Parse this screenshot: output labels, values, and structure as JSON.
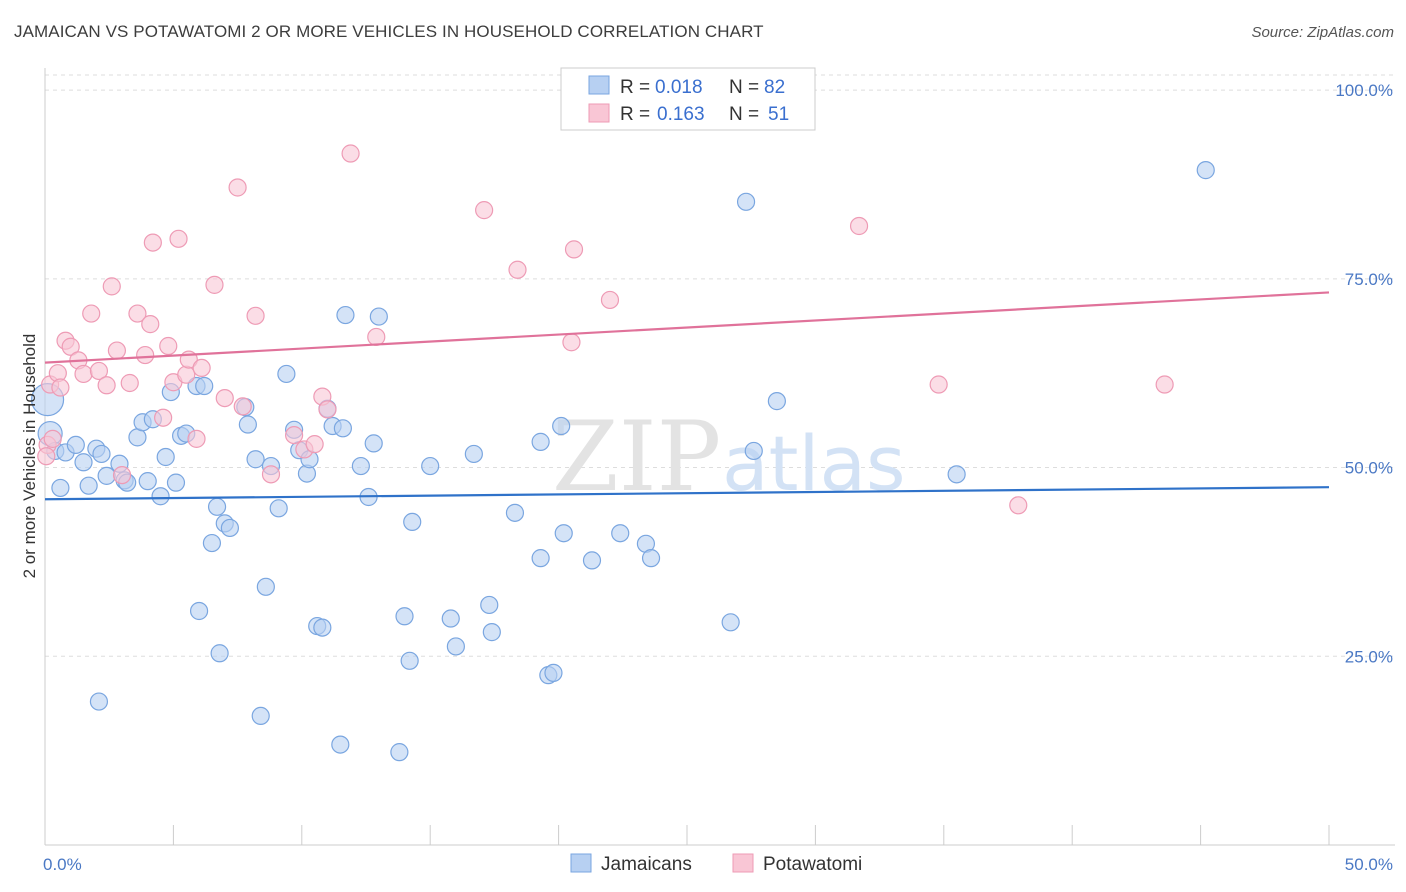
{
  "title": "JAMAICAN VS POTAWATOMI 2 OR MORE VEHICLES IN HOUSEHOLD CORRELATION CHART",
  "source": "Source: ZipAtlas.com",
  "watermark": {
    "zip": "ZIP",
    "atlas": "atlas"
  },
  "colors": {
    "jamaican_fill": "#b7d0f2",
    "jamaican_stroke": "#7aa6e0",
    "jamaican_line": "#2f72c9",
    "potawatomi_fill": "#f9c6d5",
    "potawatomi_stroke": "#ee9bb5",
    "potawatomi_line": "#e0729a",
    "axis_text": "#4a78c4",
    "grid": "#dddddd"
  },
  "legend": {
    "rows": [
      {
        "r_label": "R = ",
        "r_value": "0.018",
        "n_label": "N = ",
        "n_value": "82"
      },
      {
        "r_label": "R = ",
        "r_value": "0.163",
        "n_label": "N = ",
        "n_value": "51"
      }
    ]
  },
  "chart_data": {
    "type": "scatter",
    "title": "JAMAICAN VS POTAWATOMI 2 OR MORE VEHICLES IN HOUSEHOLD CORRELATION CHART",
    "xlabel": "",
    "ylabel": "2 or more Vehicles in Household",
    "xlim": [
      0,
      50
    ],
    "ylim": [
      0,
      102
    ],
    "x_ticks": [
      "0.0%",
      "50.0%"
    ],
    "y_ticks": [
      {
        "value": 25,
        "label": "25.0%"
      },
      {
        "value": 50,
        "label": "50.0%"
      },
      {
        "value": 75,
        "label": "75.0%"
      },
      {
        "value": 100,
        "label": "100.0%"
      }
    ],
    "grid": "horizontal-dashed",
    "legend_position": "bottom",
    "series": [
      {
        "name": "Jamaicans",
        "trend": {
          "x": [
            0,
            50
          ],
          "y": [
            45.8,
            47.4
          ]
        },
        "points": [
          [
            0.1,
            59.0
          ],
          [
            0.2,
            54.5
          ],
          [
            0.4,
            52.2
          ],
          [
            0.6,
            47.3
          ],
          [
            0.8,
            52.0
          ],
          [
            1.2,
            53.0
          ],
          [
            1.5,
            50.7
          ],
          [
            1.7,
            47.6
          ],
          [
            2.0,
            52.5
          ],
          [
            2.2,
            51.8
          ],
          [
            2.4,
            48.9
          ],
          [
            2.9,
            50.5
          ],
          [
            3.1,
            48.3
          ],
          [
            3.2,
            48.0
          ],
          [
            3.6,
            54.0
          ],
          [
            3.8,
            56.0
          ],
          [
            4.0,
            48.2
          ],
          [
            4.2,
            56.4
          ],
          [
            4.5,
            46.2
          ],
          [
            4.7,
            51.4
          ],
          [
            4.9,
            60.0
          ],
          [
            5.1,
            48.0
          ],
          [
            5.3,
            54.2
          ],
          [
            5.5,
            54.5
          ],
          [
            5.9,
            60.8
          ],
          [
            6.2,
            60.8
          ],
          [
            6.5,
            40.0
          ],
          [
            6.7,
            44.8
          ],
          [
            7.0,
            42.6
          ],
          [
            7.2,
            42.0
          ],
          [
            7.8,
            58.0
          ],
          [
            7.9,
            55.7
          ],
          [
            8.2,
            51.1
          ],
          [
            8.6,
            34.2
          ],
          [
            8.8,
            50.2
          ],
          [
            9.1,
            44.6
          ],
          [
            9.4,
            62.4
          ],
          [
            9.7,
            55.0
          ],
          [
            9.9,
            52.3
          ],
          [
            10.2,
            49.2
          ],
          [
            10.3,
            51.1
          ],
          [
            11.0,
            57.8
          ],
          [
            11.2,
            55.5
          ],
          [
            11.6,
            55.2
          ],
          [
            11.7,
            70.2
          ],
          [
            12.3,
            50.2
          ],
          [
            12.6,
            46.1
          ],
          [
            12.8,
            53.2
          ],
          [
            13.0,
            70.0
          ],
          [
            14.0,
            30.3
          ],
          [
            14.3,
            42.8
          ],
          [
            15.0,
            50.2
          ],
          [
            15.8,
            30.0
          ],
          [
            16.0,
            26.3
          ],
          [
            16.7,
            51.8
          ],
          [
            17.3,
            31.8
          ],
          [
            17.4,
            28.2
          ],
          [
            18.3,
            44.0
          ],
          [
            19.3,
            53.4
          ],
          [
            19.3,
            38.0
          ],
          [
            19.6,
            22.5
          ],
          [
            19.8,
            22.8
          ],
          [
            20.1,
            55.5
          ],
          [
            20.2,
            41.3
          ],
          [
            21.3,
            37.7
          ],
          [
            22.4,
            41.3
          ],
          [
            23.4,
            39.9
          ],
          [
            23.6,
            38.0
          ],
          [
            6.0,
            31.0
          ],
          [
            6.8,
            25.4
          ],
          [
            2.1,
            19.0
          ],
          [
            8.4,
            17.1
          ],
          [
            11.5,
            13.3
          ],
          [
            14.2,
            24.4
          ],
          [
            13.8,
            12.3
          ],
          [
            10.6,
            29.0
          ],
          [
            10.8,
            28.8
          ],
          [
            26.7,
            29.5
          ],
          [
            27.3,
            85.2
          ],
          [
            27.6,
            52.2
          ],
          [
            28.5,
            58.8
          ],
          [
            35.5,
            49.1
          ],
          [
            45.2,
            89.4
          ]
        ]
      },
      {
        "name": "Potawatomi",
        "trend": {
          "x": [
            0,
            50
          ],
          "y": [
            63.9,
            73.2
          ]
        },
        "points": [
          [
            0.1,
            53.0
          ],
          [
            0.2,
            61.0
          ],
          [
            0.5,
            62.5
          ],
          [
            0.6,
            60.6
          ],
          [
            0.8,
            66.8
          ],
          [
            1.0,
            66.0
          ],
          [
            1.3,
            64.2
          ],
          [
            1.5,
            62.4
          ],
          [
            1.8,
            70.4
          ],
          [
            2.1,
            62.8
          ],
          [
            2.4,
            60.9
          ],
          [
            2.6,
            74.0
          ],
          [
            2.8,
            65.5
          ],
          [
            3.0,
            49.0
          ],
          [
            3.3,
            61.2
          ],
          [
            3.6,
            70.4
          ],
          [
            3.9,
            64.9
          ],
          [
            4.1,
            69.0
          ],
          [
            4.2,
            79.8
          ],
          [
            4.6,
            56.6
          ],
          [
            4.8,
            66.1
          ],
          [
            5.0,
            61.3
          ],
          [
            5.2,
            80.3
          ],
          [
            5.5,
            62.3
          ],
          [
            5.6,
            64.3
          ],
          [
            5.9,
            53.8
          ],
          [
            6.1,
            63.2
          ],
          [
            6.6,
            74.2
          ],
          [
            7.0,
            59.2
          ],
          [
            7.5,
            87.1
          ],
          [
            7.7,
            58.1
          ],
          [
            8.2,
            70.1
          ],
          [
            8.8,
            49.1
          ],
          [
            9.7,
            54.3
          ],
          [
            10.1,
            52.4
          ],
          [
            10.5,
            53.1
          ],
          [
            10.8,
            59.4
          ],
          [
            11.0,
            57.7
          ],
          [
            11.9,
            91.6
          ],
          [
            12.9,
            67.3
          ],
          [
            17.1,
            84.1
          ],
          [
            18.4,
            76.2
          ],
          [
            20.5,
            66.6
          ],
          [
            20.6,
            78.9
          ],
          [
            22.0,
            72.2
          ],
          [
            31.7,
            82.0
          ],
          [
            34.8,
            61.0
          ],
          [
            37.9,
            45.0
          ],
          [
            43.6,
            61.0
          ],
          [
            0.05,
            51.5
          ],
          [
            0.3,
            53.8
          ]
        ]
      }
    ]
  },
  "bottom_legend": [
    "Jamaicans",
    "Potawatomi"
  ]
}
